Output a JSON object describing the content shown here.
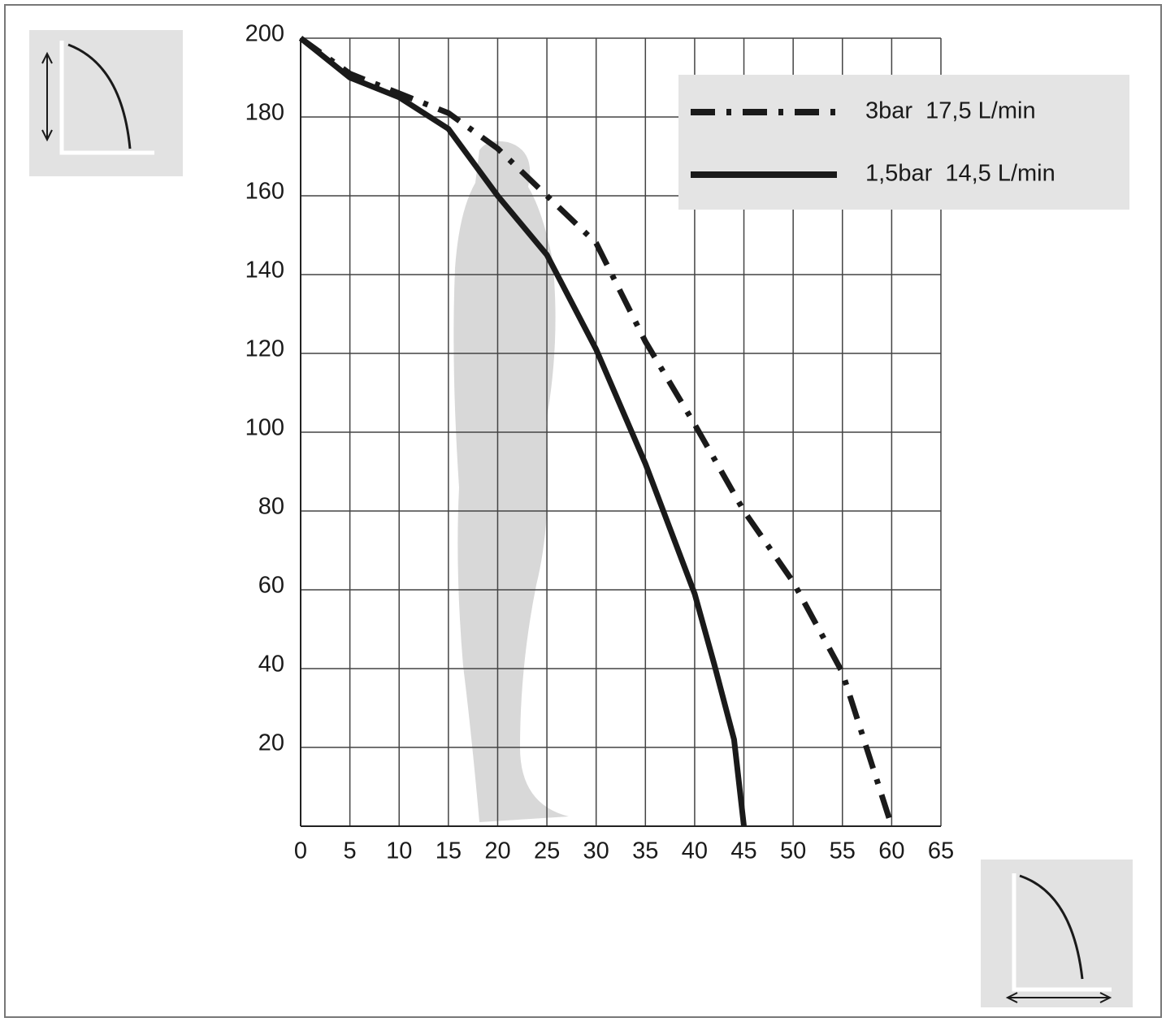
{
  "chart_data": {
    "type": "line",
    "xlim": [
      0,
      65
    ],
    "xticks": [
      0,
      5,
      10,
      15,
      20,
      25,
      30,
      35,
      40,
      45,
      50,
      55,
      60,
      65
    ],
    "ylim": [
      0,
      200
    ],
    "yticks": [
      20,
      40,
      60,
      80,
      100,
      120,
      140,
      160,
      180,
      200
    ],
    "grid": true,
    "legend": "top right",
    "series": [
      {
        "name": "3bar  17,5 L/min",
        "color": "#1a1a1a",
        "dash": "dashdot",
        "x": [
          0,
          5,
          10,
          15,
          20,
          25,
          30,
          35,
          40,
          45,
          50,
          55,
          60
        ],
        "values": [
          200,
          191,
          186,
          181,
          172,
          160,
          148,
          123,
          102,
          80,
          62,
          39,
          0
        ]
      },
      {
        "name": "1,5bar  14,5 L/min",
        "color": "#1a1a1a",
        "dash": "solid",
        "x": [
          0,
          5,
          10,
          15,
          20,
          25,
          30,
          35,
          40,
          42,
          44,
          45
        ],
        "values": [
          200,
          190,
          185,
          177,
          160,
          145,
          121,
          92,
          59,
          41,
          22,
          0
        ]
      }
    ]
  }
}
